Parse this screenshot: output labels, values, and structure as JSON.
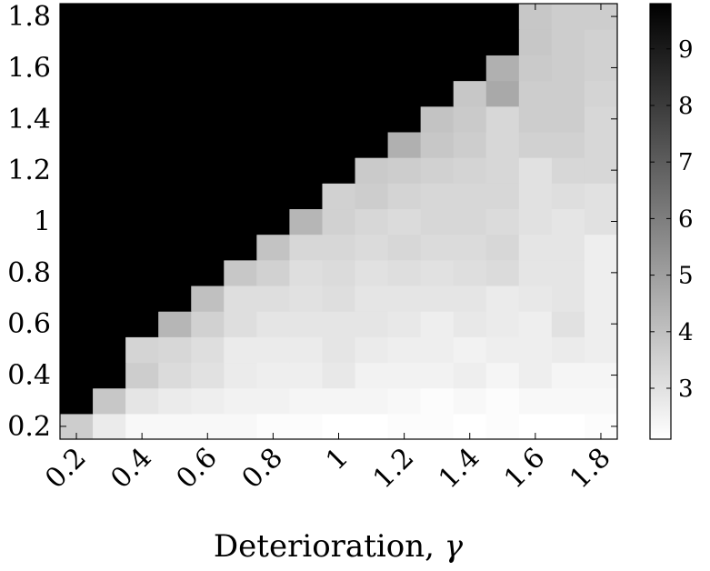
{
  "chart_data": {
    "type": "heatmap",
    "title": "",
    "xlabel": "Deterioration, ",
    "xlabel_symbol": "γ",
    "ylabel": "",
    "x": [
      0.2,
      0.3,
      0.4,
      0.5,
      0.6,
      0.7,
      0.8,
      0.9,
      1.0,
      1.1,
      1.2,
      1.3,
      1.4,
      1.5,
      1.6,
      1.7,
      1.8
    ],
    "y": [
      0.2,
      0.3,
      0.4,
      0.5,
      0.6,
      0.7,
      0.8,
      0.9,
      1.0,
      1.1,
      1.2,
      1.3,
      1.4,
      1.5,
      1.6,
      1.7,
      1.8
    ],
    "xlim": [
      0.15,
      1.85
    ],
    "ylim": [
      0.15,
      1.85
    ],
    "x_ticks": [
      0.2,
      0.4,
      0.6,
      0.8,
      1.0,
      1.2,
      1.4,
      1.6,
      1.8
    ],
    "x_tick_labels": [
      "0.2",
      "0.4",
      "0.6",
      "0.8",
      "1",
      "1.2",
      "1.4",
      "1.6",
      "1.8"
    ],
    "y_ticks": [
      0.2,
      0.4,
      0.6,
      0.8,
      1.0,
      1.2,
      1.4,
      1.6,
      1.8
    ],
    "y_tick_labels": [
      "0.2",
      "0.4",
      "0.6",
      "0.8",
      "1",
      "1.2",
      "1.4",
      "1.6",
      "1.8"
    ],
    "colormap": "gray (white = low, black = high)",
    "colorbar": {
      "range": [
        2.1,
        9.8
      ],
      "ticks": [
        3,
        4,
        5,
        6,
        7,
        8,
        9
      ],
      "tick_labels": [
        "3",
        "4",
        "5",
        "6",
        "7",
        "8",
        "9"
      ],
      "low_color": "#ffffff",
      "high_color": "#000000"
    },
    "values": [
      [
        3.6,
        2.7,
        2.3,
        2.3,
        2.3,
        2.3,
        2.2,
        2.2,
        2.1,
        2.1,
        2.2,
        2.2,
        2.1,
        2.2,
        2.1,
        2.1,
        2.2
      ],
      [
        9.8,
        3.8,
        2.9,
        2.7,
        2.6,
        2.5,
        2.5,
        2.4,
        2.4,
        2.4,
        2.3,
        2.2,
        2.3,
        2.2,
        2.3,
        2.3,
        2.3
      ],
      [
        9.8,
        9.8,
        3.6,
        3.2,
        3.0,
        2.7,
        2.6,
        2.6,
        2.8,
        2.5,
        2.5,
        2.5,
        2.6,
        2.4,
        2.6,
        2.4,
        2.4
      ],
      [
        9.8,
        9.8,
        3.4,
        3.3,
        3.1,
        2.7,
        2.7,
        2.7,
        2.9,
        2.7,
        2.6,
        2.6,
        2.5,
        2.6,
        2.6,
        2.7,
        2.6
      ],
      [
        9.8,
        9.8,
        9.8,
        4.3,
        3.5,
        3.1,
        2.9,
        2.9,
        2.9,
        2.9,
        2.8,
        2.6,
        2.8,
        2.7,
        2.6,
        3.0,
        2.6
      ],
      [
        9.8,
        9.8,
        9.8,
        9.8,
        4.0,
        3.1,
        3.1,
        3.0,
        3.1,
        2.9,
        2.9,
        2.9,
        2.9,
        2.7,
        2.8,
        2.9,
        2.6
      ],
      [
        9.8,
        9.8,
        9.8,
        9.8,
        9.8,
        3.8,
        3.5,
        3.1,
        3.2,
        3.0,
        3.1,
        3.0,
        3.1,
        3.2,
        2.9,
        2.9,
        2.6
      ],
      [
        9.8,
        9.8,
        9.8,
        9.8,
        9.8,
        9.8,
        3.9,
        3.3,
        3.3,
        3.2,
        3.3,
        3.2,
        3.2,
        3.3,
        2.9,
        2.9,
        2.6
      ],
      [
        9.8,
        9.8,
        9.8,
        9.8,
        9.8,
        9.8,
        9.8,
        4.3,
        3.5,
        3.3,
        3.2,
        3.3,
        3.3,
        3.2,
        3.0,
        2.9,
        3.0
      ],
      [
        9.8,
        9.8,
        9.8,
        9.8,
        9.8,
        9.8,
        9.8,
        9.8,
        3.5,
        3.6,
        3.4,
        3.3,
        3.3,
        3.3,
        3.0,
        3.1,
        3.0
      ],
      [
        9.8,
        9.8,
        9.8,
        9.8,
        9.8,
        9.8,
        9.8,
        9.8,
        9.8,
        3.7,
        3.6,
        3.5,
        3.4,
        3.3,
        3.0,
        3.3,
        3.3
      ],
      [
        9.8,
        9.8,
        9.8,
        9.8,
        9.8,
        9.8,
        9.8,
        9.8,
        9.8,
        9.8,
        4.5,
        3.8,
        3.6,
        3.3,
        3.5,
        3.5,
        3.3
      ],
      [
        9.8,
        9.8,
        9.8,
        9.8,
        9.8,
        9.8,
        9.8,
        9.8,
        9.8,
        9.8,
        9.8,
        3.9,
        3.7,
        3.3,
        3.6,
        3.6,
        3.3
      ],
      [
        9.8,
        9.8,
        9.8,
        9.8,
        9.8,
        9.8,
        9.8,
        9.8,
        9.8,
        9.8,
        9.8,
        9.8,
        3.8,
        4.7,
        3.6,
        3.6,
        3.4
      ],
      [
        9.8,
        9.8,
        9.8,
        9.8,
        9.8,
        9.8,
        9.8,
        9.8,
        9.8,
        9.8,
        9.8,
        9.8,
        9.8,
        4.5,
        3.7,
        3.6,
        3.5
      ],
      [
        9.8,
        9.8,
        9.8,
        9.8,
        9.8,
        9.8,
        9.8,
        9.8,
        9.8,
        9.8,
        9.8,
        9.8,
        9.8,
        9.8,
        3.8,
        3.6,
        3.5
      ],
      [
        9.8,
        9.8,
        9.8,
        9.8,
        9.8,
        9.8,
        9.8,
        9.8,
        9.8,
        9.8,
        9.8,
        9.8,
        9.8,
        9.8,
        3.8,
        3.6,
        3.6
      ]
    ],
    "grid": false,
    "legend": "colorbar right"
  }
}
